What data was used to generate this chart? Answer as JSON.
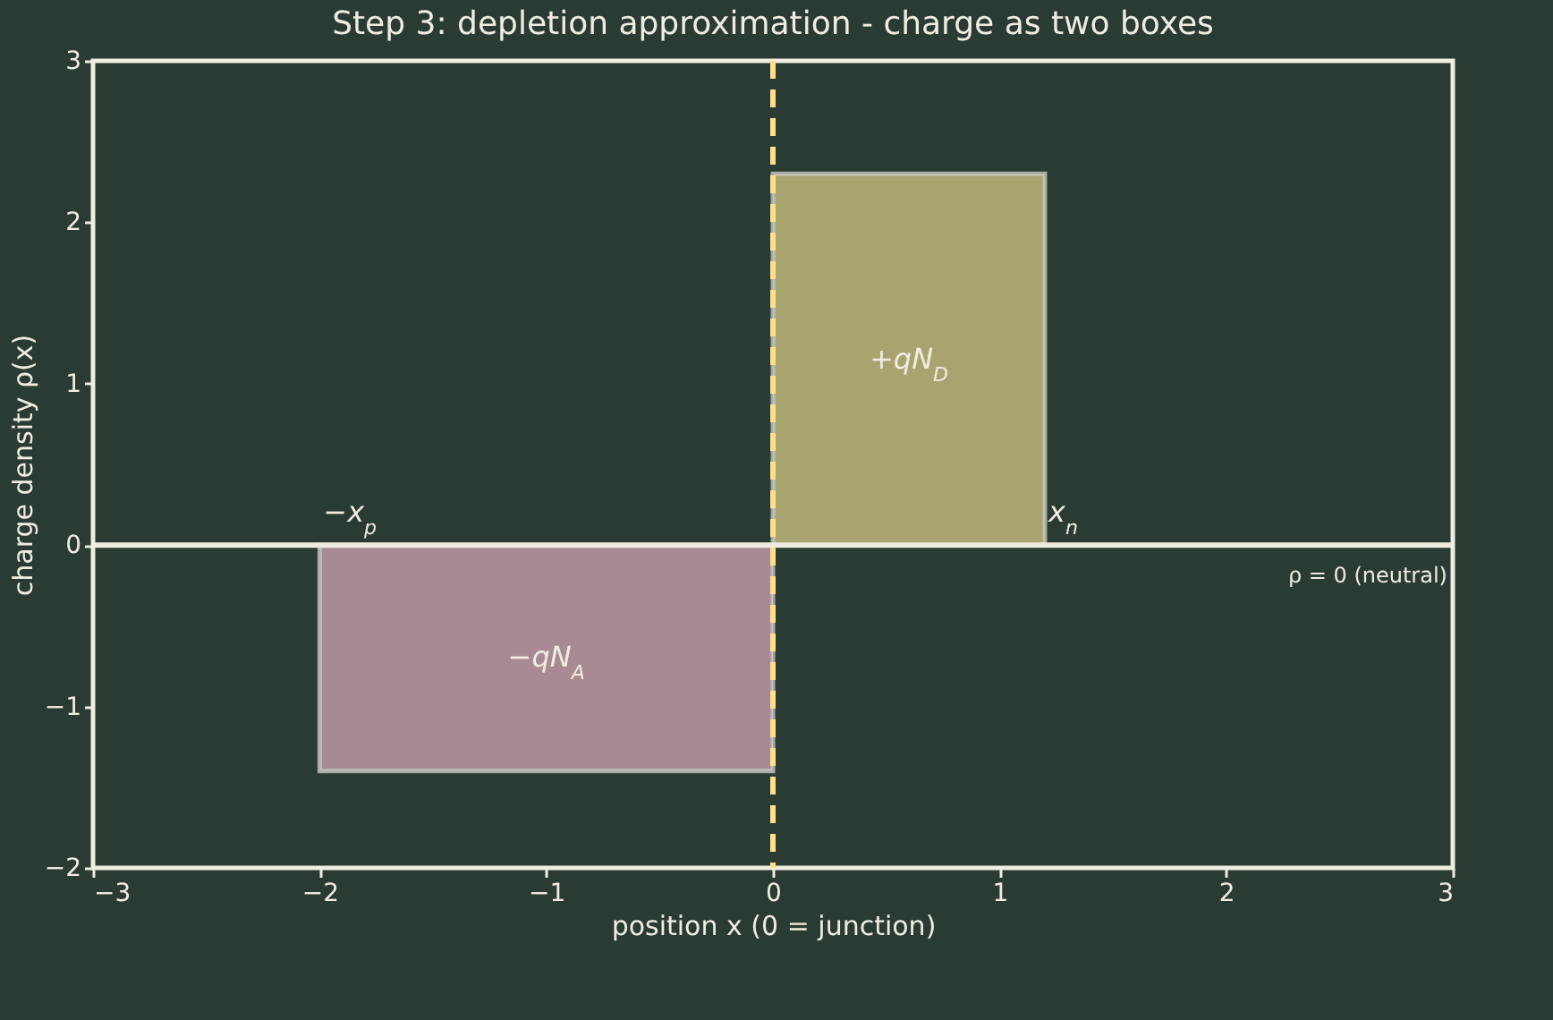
{
  "chart_data": {
    "type": "histogram",
    "title": "Step 3: depletion approximation - charge as two boxes",
    "xlabel": "position x (0 = junction)",
    "ylabel": "charge density ρ(x)",
    "bins": [
      -2,
      0,
      1.2
    ],
    "values": [
      -1.4,
      2.3
    ],
    "colors": [
      "#a88a94",
      "#a8a470"
    ],
    "xlim": [
      -3,
      3
    ],
    "xticks": [
      {
        "value": -3,
        "label": "−3"
      },
      {
        "value": -2,
        "label": "−2"
      },
      {
        "value": -1,
        "label": "−1"
      },
      0,
      1,
      2,
      3
    ],
    "ylim": [
      -2,
      3
    ],
    "yticks": [
      {
        "value": -2,
        "label": "−2"
      },
      {
        "value": -1,
        "label": "−1"
      },
      0,
      1,
      2,
      3
    ],
    "grid": false,
    "ref_lines": [
      {
        "axis": "y",
        "value": 0,
        "color": "#f0ede0",
        "line_style": "solid"
      },
      {
        "axis": "x",
        "value": 0,
        "color": "#ffe08a",
        "line_style": "dashed"
      }
    ],
    "value_labels": [
      "−qN$_{A}$",
      "+qN$_{D}$"
    ],
    "annotations": [
      {
        "text": "−x$_{p}$",
        "x": -2,
        "y": 0
      },
      {
        "text": "x$_{n}$",
        "x": 1.2,
        "y": 0
      },
      {
        "text": "ρ = 0 (neutral)",
        "x": 3,
        "y": 0
      }
    ]
  }
}
